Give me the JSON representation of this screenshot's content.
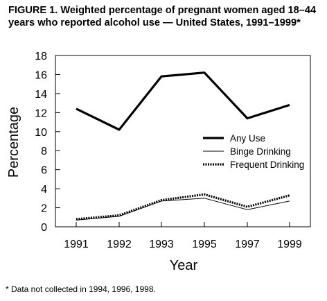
{
  "figure": {
    "title": "FIGURE 1. Weighted percentage of pregnant women aged 18–44 years who reported alcohol use — United States, 1991–1999*",
    "footnote": "* Data not collected in 1994, 1996, 1998."
  },
  "chart_data": {
    "type": "line",
    "title": "FIGURE 1. Weighted percentage of pregnant women aged 18–44 years who reported alcohol use — United States, 1991–1999*",
    "xlabel": "Year",
    "ylabel": "Percentage",
    "x": [
      "1991",
      "1992",
      "1993",
      "1995",
      "1997",
      "1999"
    ],
    "ylim": [
      0,
      18
    ],
    "yticks": [
      0,
      2,
      4,
      6,
      8,
      10,
      12,
      14,
      16,
      18
    ],
    "grid": false,
    "legend_position": "right",
    "series": [
      {
        "name": "Any Use",
        "style": "thick-solid",
        "values": [
          12.4,
          10.2,
          15.8,
          16.2,
          11.4,
          12.8
        ]
      },
      {
        "name": "Binge Drinking",
        "style": "thin-solid",
        "values": [
          0.7,
          1.1,
          2.7,
          3.0,
          1.8,
          2.7
        ]
      },
      {
        "name": "Frequent Drinking",
        "style": "thick-dotted",
        "values": [
          0.8,
          1.2,
          2.8,
          3.4,
          2.1,
          3.3
        ]
      }
    ]
  }
}
